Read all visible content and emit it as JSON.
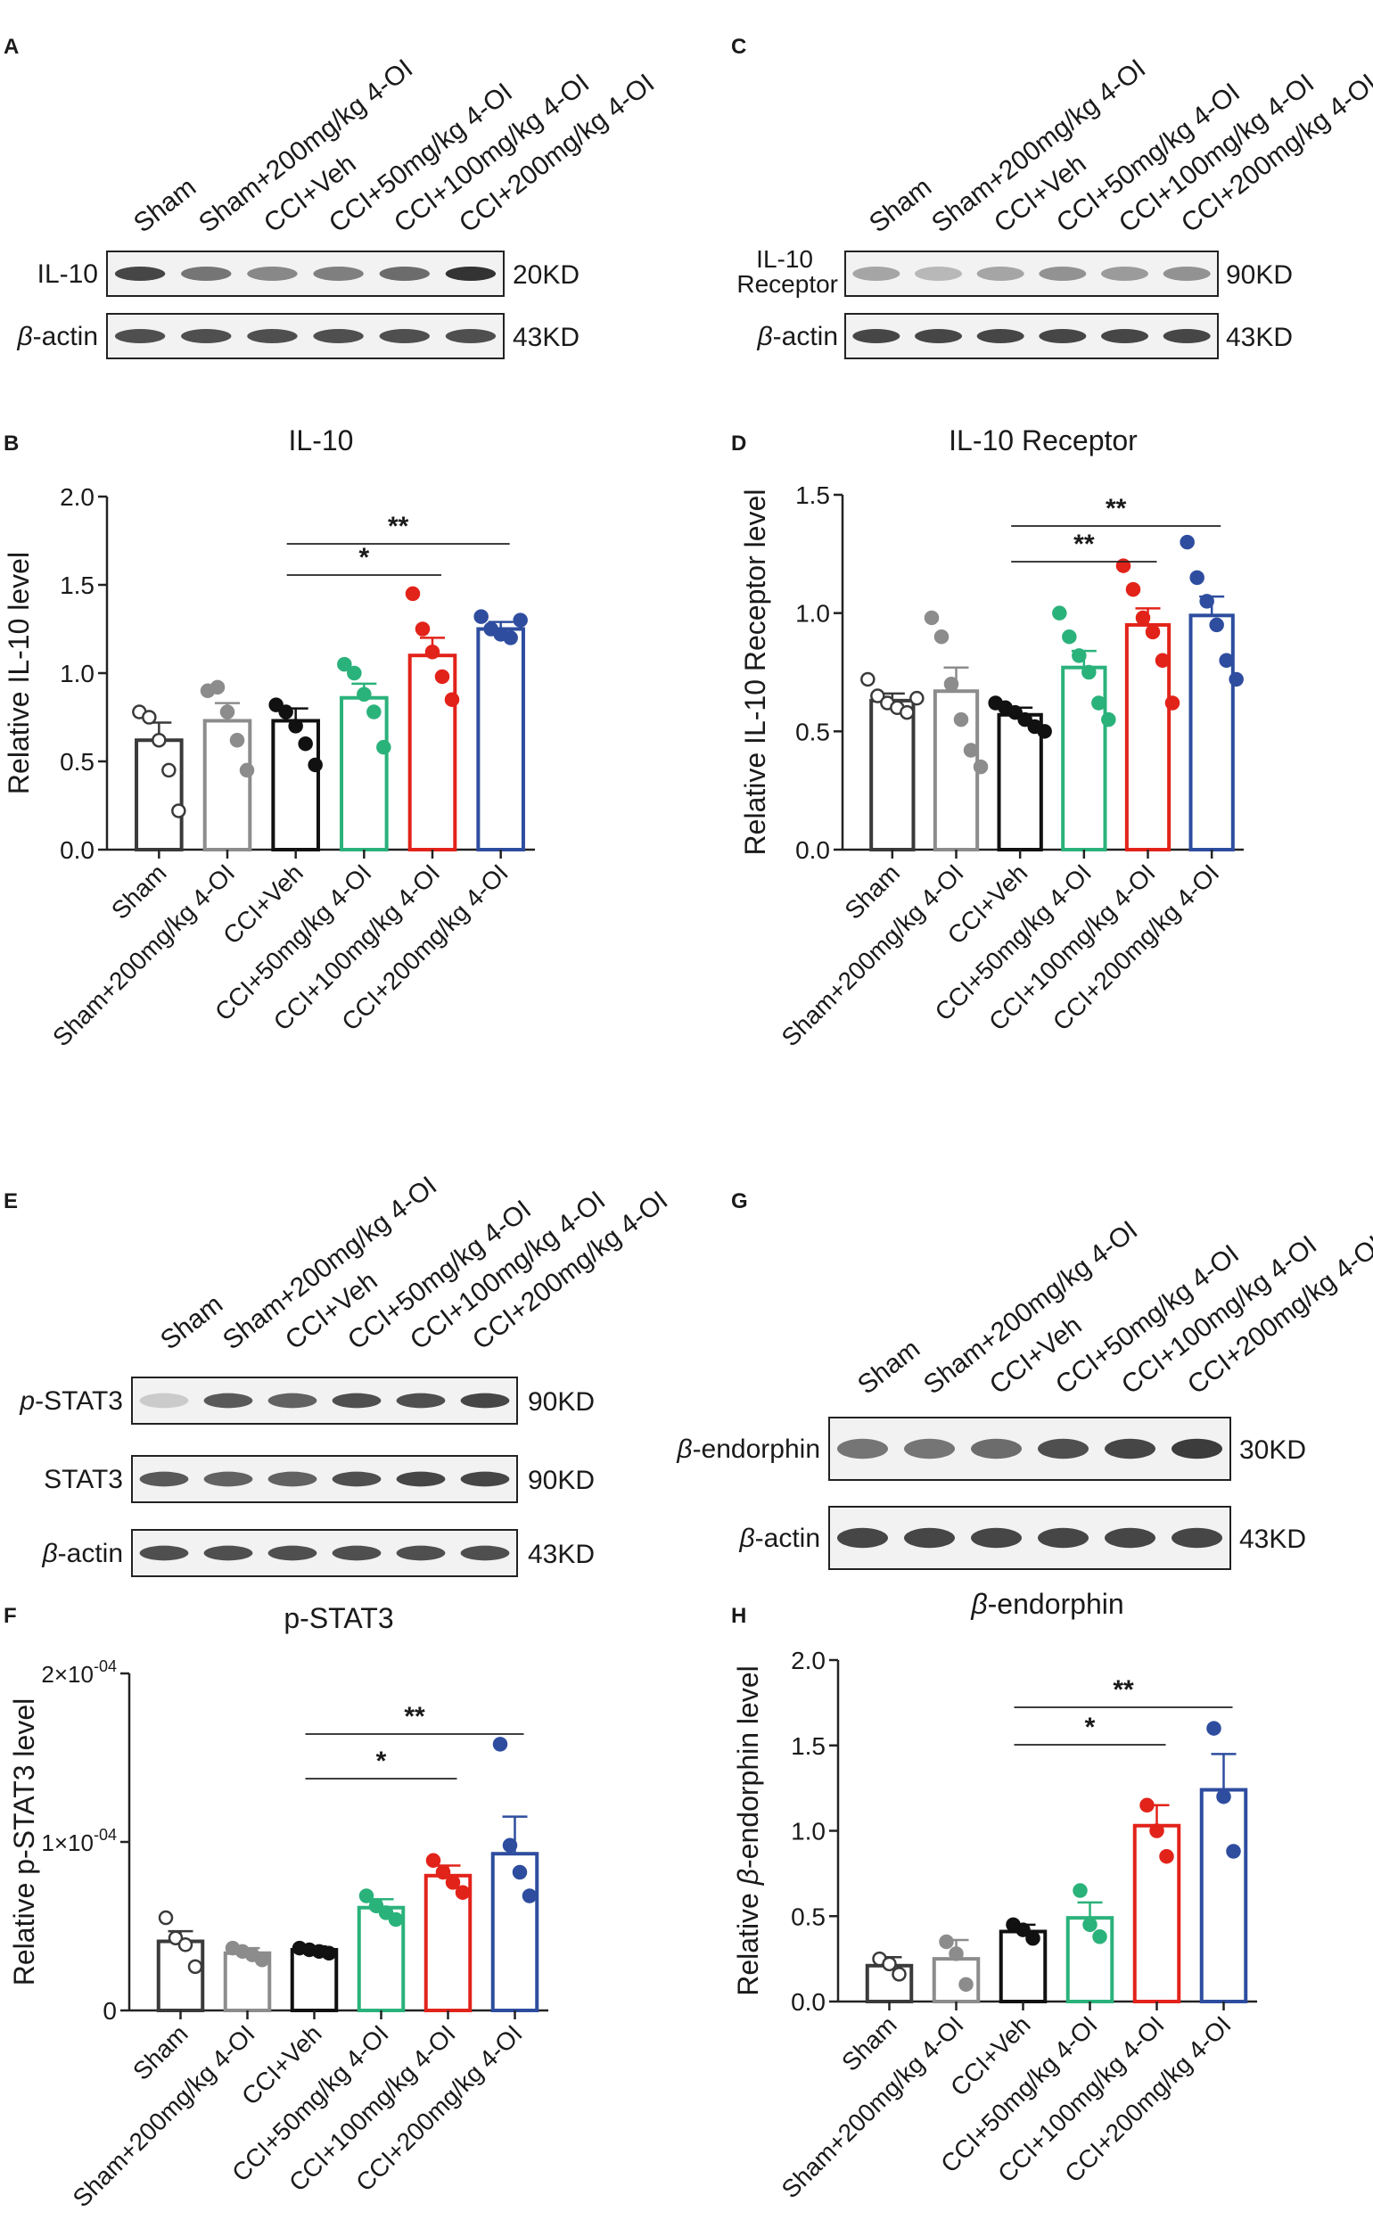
{
  "groups": [
    "Sham",
    "Sham+200mg/kg 4-OI",
    "CCI+Veh",
    "CCI+50mg/kg 4-OI",
    "CCI+100mg/kg 4-OI",
    "CCI+200mg/kg 4-OI"
  ],
  "group_colors": [
    "#3a3a3a",
    "#8c8c8c",
    "#111111",
    "#2ab27b",
    "#e2231a",
    "#2e4d9f"
  ],
  "group_fill": [
    "white",
    "grey",
    "black",
    "green",
    "red",
    "blue"
  ],
  "panel_letters": [
    "A",
    "B",
    "C",
    "D",
    "E",
    "F",
    "G",
    "H"
  ],
  "blots": [
    {
      "letter": "A",
      "rows": [
        {
          "label": "IL-10",
          "label_lines": [
            "IL-10"
          ],
          "kd": "20KD",
          "intensity": [
            0.85,
            0.6,
            0.5,
            0.55,
            0.65,
            0.95
          ]
        },
        {
          "label": "β-actin",
          "label_lines": [
            "β-actin"
          ],
          "label_prefix": "β",
          "label_rest": "-actin",
          "kd": "43KD",
          "intensity": [
            0.8,
            0.8,
            0.8,
            0.8,
            0.8,
            0.8
          ]
        }
      ]
    },
    {
      "letter": "C",
      "rows": [
        {
          "label": "IL-10 Receptor",
          "label_lines": [
            "IL-10",
            "Receptor"
          ],
          "kd": "90KD",
          "intensity": [
            0.35,
            0.25,
            0.35,
            0.45,
            0.4,
            0.45
          ]
        },
        {
          "label": "β-actin",
          "label_lines": [
            "β-actin"
          ],
          "label_prefix": "β",
          "label_rest": "-actin",
          "kd": "43KD",
          "intensity": [
            0.85,
            0.85,
            0.85,
            0.85,
            0.85,
            0.85
          ]
        }
      ]
    },
    {
      "letter": "E",
      "rows": [
        {
          "label": "p-STAT3",
          "label_lines": [
            "p-STAT3"
          ],
          "label_prefix": "p",
          "label_rest": "-STAT3",
          "kd": "90KD",
          "intensity": [
            0.15,
            0.75,
            0.7,
            0.8,
            0.8,
            0.85
          ]
        },
        {
          "label": "STAT3",
          "label_lines": [
            "STAT3"
          ],
          "kd": "90KD",
          "intensity": [
            0.75,
            0.7,
            0.7,
            0.8,
            0.85,
            0.85
          ]
        },
        {
          "label": "β-actin",
          "label_lines": [
            "β-actin"
          ],
          "label_prefix": "β",
          "label_rest": "-actin",
          "kd": "43KD",
          "intensity": [
            0.8,
            0.8,
            0.8,
            0.8,
            0.8,
            0.8
          ]
        }
      ]
    },
    {
      "letter": "G",
      "rows": [
        {
          "label": "β-endorphin",
          "label_lines": [
            "β-endorphin"
          ],
          "label_prefix": "β",
          "label_rest": "-endorphin",
          "kd": "30KD",
          "intensity": [
            0.6,
            0.6,
            0.65,
            0.8,
            0.85,
            0.9
          ]
        },
        {
          "label": "β-actin",
          "label_lines": [
            "β-actin"
          ],
          "label_prefix": "β",
          "label_rest": "-actin",
          "kd": "43KD",
          "intensity": [
            0.85,
            0.85,
            0.85,
            0.85,
            0.85,
            0.85
          ]
        }
      ]
    }
  ],
  "chart_data": [
    {
      "letter": "B",
      "type": "bar",
      "title": "IL-10",
      "ylabel": "Relative IL-10 level",
      "ylim": [
        0,
        2.0
      ],
      "yticks": [
        "0.0",
        "0.5",
        "1.0",
        "1.5",
        "2.0"
      ],
      "ytick_values": [
        0,
        0.5,
        1.0,
        1.5,
        2.0
      ],
      "categories": [
        "Sham",
        "Sham+200mg/kg 4-OI",
        "CCI+Veh",
        "CCI+50mg/kg 4-OI",
        "CCI+100mg/kg 4-OI",
        "CCI+200mg/kg 4-OI"
      ],
      "values": [
        0.62,
        0.73,
        0.73,
        0.86,
        1.1,
        1.25
      ],
      "sem": [
        0.1,
        0.1,
        0.07,
        0.08,
        0.1,
        0.04
      ],
      "points": [
        [
          0.78,
          0.75,
          0.62,
          0.45,
          0.22
        ],
        [
          0.9,
          0.92,
          0.78,
          0.62,
          0.45
        ],
        [
          0.82,
          0.78,
          0.7,
          0.6,
          0.48
        ],
        [
          1.05,
          1.0,
          0.88,
          0.78,
          0.58
        ],
        [
          1.45,
          1.25,
          1.12,
          0.98,
          0.85
        ],
        [
          1.32,
          1.25,
          1.22,
          1.2,
          1.3
        ]
      ],
      "significance": [
        {
          "from": 2,
          "to": 4,
          "label": "*"
        },
        {
          "from": 2,
          "to": 5,
          "label": "**"
        }
      ]
    },
    {
      "letter": "D",
      "type": "bar",
      "title": "IL-10 Receptor",
      "ylabel": "Relative IL-10 Receptor level",
      "ylim": [
        0,
        1.5
      ],
      "yticks": [
        "0.0",
        "0.5",
        "1.0",
        "1.5"
      ],
      "ytick_values": [
        0,
        0.5,
        1.0,
        1.5
      ],
      "categories": [
        "Sham",
        "Sham+200mg/kg 4-OI",
        "CCI+Veh",
        "CCI+50mg/kg 4-OI",
        "CCI+100mg/kg 4-OI",
        "CCI+200mg/kg 4-OI"
      ],
      "values": [
        0.63,
        0.67,
        0.57,
        0.77,
        0.95,
        0.99
      ],
      "sem": [
        0.03,
        0.1,
        0.03,
        0.07,
        0.07,
        0.08
      ],
      "points": [
        [
          0.72,
          0.65,
          0.62,
          0.6,
          0.58,
          0.64
        ],
        [
          0.98,
          0.9,
          0.7,
          0.55,
          0.42,
          0.35
        ],
        [
          0.62,
          0.6,
          0.58,
          0.55,
          0.52,
          0.5
        ],
        [
          1.0,
          0.9,
          0.82,
          0.75,
          0.62,
          0.55
        ],
        [
          1.2,
          1.1,
          0.98,
          0.92,
          0.8,
          0.62
        ],
        [
          1.3,
          1.15,
          1.05,
          0.95,
          0.8,
          0.72
        ]
      ],
      "significance": [
        {
          "from": 2,
          "to": 4,
          "label": "**"
        },
        {
          "from": 2,
          "to": 5,
          "label": "**"
        }
      ]
    },
    {
      "letter": "F",
      "type": "bar",
      "title": "p-STAT3",
      "ylabel": "Relative p-STAT3 level",
      "ylim": [
        0,
        0.0002
      ],
      "yticks": [
        "0",
        "1×10⁻⁰⁴",
        "2×10⁻⁰⁴"
      ],
      "ytick_values": [
        0,
        0.0001,
        0.0002
      ],
      "categories": [
        "Sham",
        "Sham+200mg/kg 4-OI",
        "CCI+Veh",
        "CCI+50mg/kg 4-OI",
        "CCI+100mg/kg 4-OI",
        "CCI+200mg/kg 4-OI"
      ],
      "values": [
        4.1e-05,
        3.4e-05,
        3.6e-05,
        6.1e-05,
        8e-05,
        9.3e-05
      ],
      "sem": [
        6e-06,
        3e-06,
        2e-06,
        5e-06,
        6e-06,
        2.2e-05
      ],
      "points": [
        [
          5.5e-05,
          4.3e-05,
          3.9e-05,
          2.6e-05
        ],
        [
          3.7e-05,
          3.5e-05,
          3.3e-05,
          3e-05
        ],
        [
          3.7e-05,
          3.6e-05,
          3.5e-05,
          3.4e-05
        ],
        [
          6.8e-05,
          6.2e-05,
          5.8e-05,
          5.4e-05
        ],
        [
          8.9e-05,
          8.2e-05,
          7.6e-05,
          7e-05
        ],
        [
          0.000158,
          9.8e-05,
          8.2e-05,
          6.8e-05
        ]
      ],
      "significance": [
        {
          "from": 2,
          "to": 4,
          "label": "*"
        },
        {
          "from": 2,
          "to": 5,
          "label": "**"
        }
      ]
    },
    {
      "letter": "H",
      "type": "bar",
      "title": "β-endorphin",
      "ylabel": "Relative β-endorphin level",
      "ylim": [
        0,
        2.0
      ],
      "yticks": [
        "0.0",
        "0.5",
        "1.0",
        "1.5",
        "2.0"
      ],
      "ytick_values": [
        0,
        0.5,
        1.0,
        1.5,
        2.0
      ],
      "categories": [
        "Sham",
        "Sham+200mg/kg 4-OI",
        "CCI+Veh",
        "CCI+50mg/kg 4-OI",
        "CCI+100mg/kg 4-OI",
        "CCI+200mg/kg 4-OI"
      ],
      "values": [
        0.21,
        0.25,
        0.41,
        0.49,
        1.03,
        1.24
      ],
      "sem": [
        0.05,
        0.11,
        0.04,
        0.09,
        0.12,
        0.21
      ],
      "points": [
        [
          0.25,
          0.22,
          0.16
        ],
        [
          0.35,
          0.28,
          0.1
        ],
        [
          0.45,
          0.42,
          0.37
        ],
        [
          0.65,
          0.45,
          0.38
        ],
        [
          1.15,
          1.0,
          0.85
        ],
        [
          1.6,
          1.2,
          0.88
        ]
      ],
      "significance": [
        {
          "from": 2,
          "to": 4,
          "label": "*"
        },
        {
          "from": 2,
          "to": 5,
          "label": "**"
        }
      ]
    }
  ]
}
